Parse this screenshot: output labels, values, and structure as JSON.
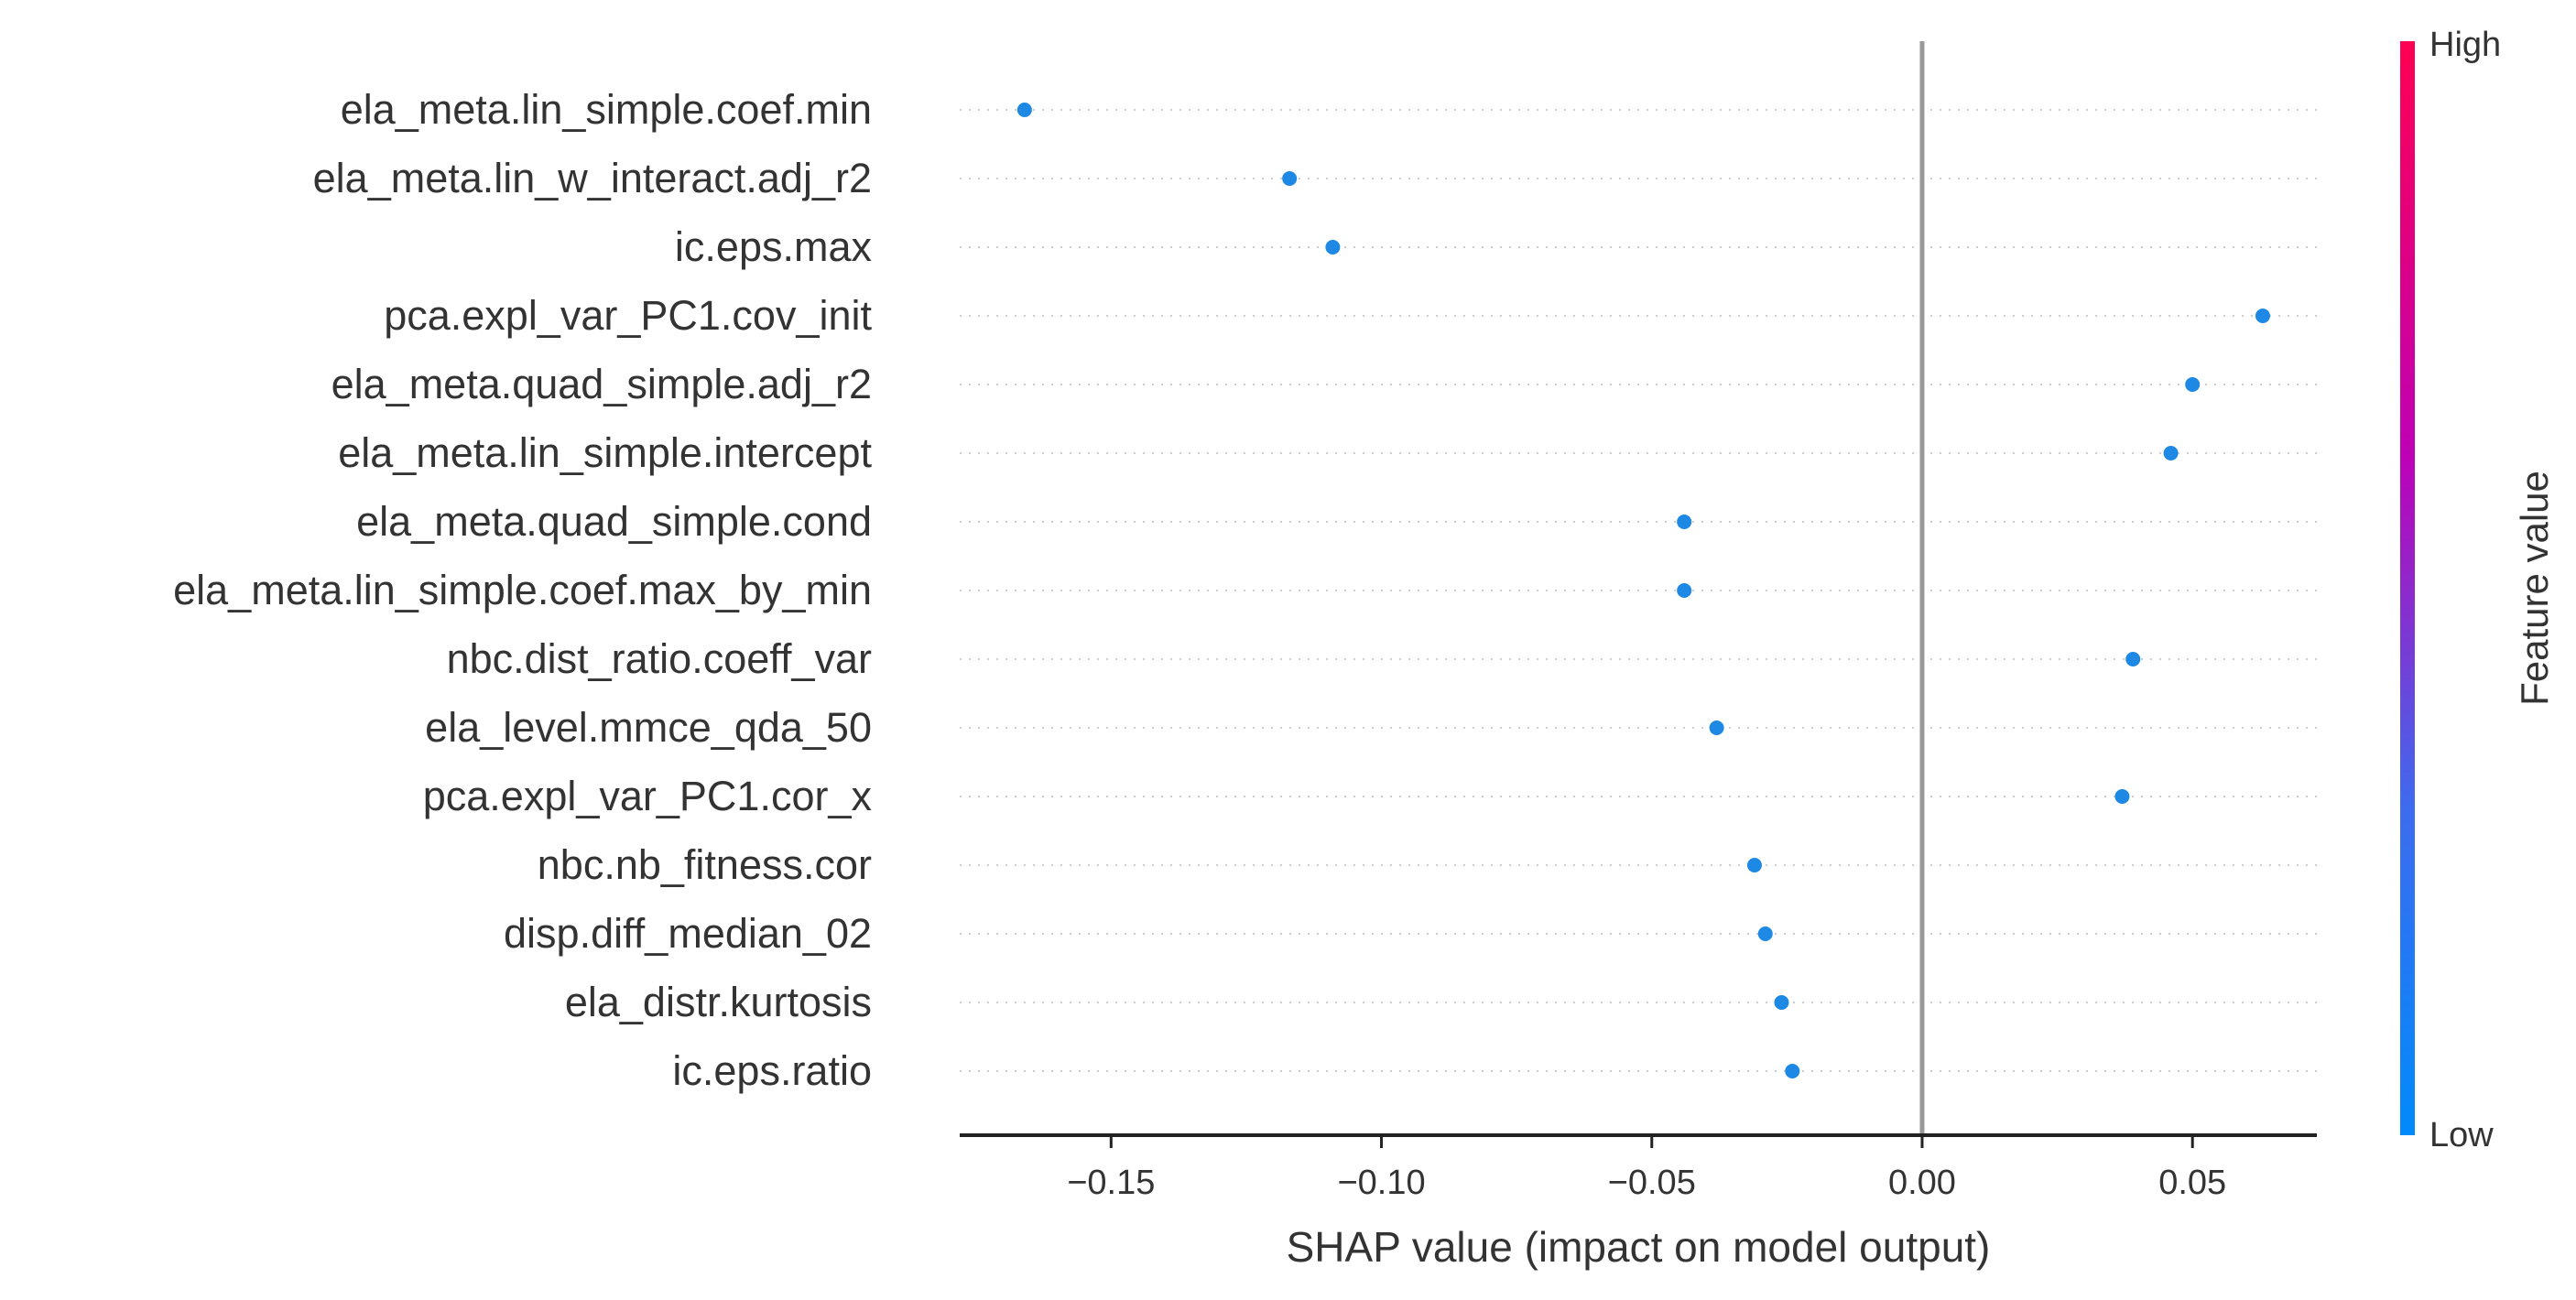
{
  "chart_data": {
    "type": "scatter",
    "title": "",
    "xlabel": "SHAP value (impact on model output)",
    "ylabel": "",
    "xlim": [
      -0.178,
      0.073
    ],
    "xticks": [
      -0.15,
      -0.1,
      -0.05,
      0.0,
      0.05
    ],
    "xtick_labels": [
      "−0.15",
      "−0.10",
      "−0.05",
      "0.00",
      "0.05"
    ],
    "zero_line": 0.0,
    "features": [
      "ela_meta.lin_simple.coef.min",
      "ela_meta.lin_w_interact.adj_r2",
      "ic.eps.max",
      "pca.expl_var_PC1.cov_init",
      "ela_meta.quad_simple.adj_r2",
      "ela_meta.lin_simple.intercept",
      "ela_meta.quad_simple.cond",
      "ela_meta.lin_simple.coef.max_by_min",
      "nbc.dist_ratio.coeff_var",
      "ela_level.mmce_qda_50",
      "pca.expl_var_PC1.cor_x",
      "nbc.nb_fitness.cor",
      "disp.diff_median_02",
      "ela_distr.kurtosis",
      "ic.eps.ratio"
    ],
    "values": [
      -0.166,
      -0.117,
      -0.109,
      0.063,
      0.05,
      0.046,
      -0.044,
      -0.044,
      0.039,
      -0.038,
      0.037,
      -0.031,
      -0.029,
      -0.026,
      -0.024
    ],
    "point_color": "#1E88E5",
    "grid": false,
    "colorbar": {
      "title": "Feature value",
      "high_label": "High",
      "low_label": "Low",
      "high_color": "#FF0052",
      "mid_color": "#BE01B6",
      "low_color": "#008BFB"
    }
  }
}
